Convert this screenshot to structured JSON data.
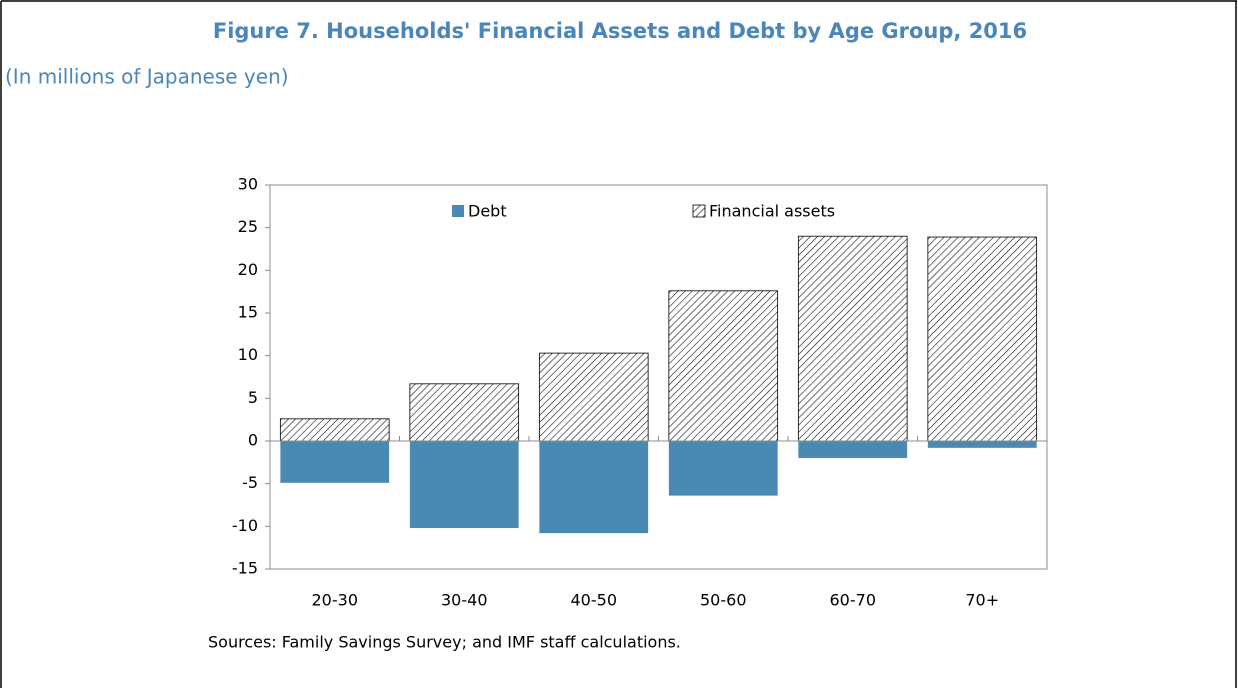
{
  "chart_data": {
    "type": "bar",
    "title": "Figure 7. Households' Financial Assets and Debt by Age Group, 2016",
    "subtitle": "(In millions of Japanese yen)",
    "note": "Sources: Family Savings Survey; and IMF staff calculations.",
    "categories": [
      "20-30",
      "30-40",
      "40-50",
      "50-60",
      "60-70",
      "70+"
    ],
    "series": [
      {
        "name": "Debt",
        "color": "#4a89b1",
        "hatch": false,
        "values": [
          -4.9,
          -10.2,
          -10.8,
          -6.4,
          -2.0,
          -0.8
        ]
      },
      {
        "name": "Financial assets",
        "color": "#000000",
        "hatch": true,
        "values": [
          2.6,
          6.7,
          10.3,
          17.6,
          24.0,
          23.9
        ]
      }
    ],
    "ylim": [
      -15,
      30
    ],
    "yticks": [
      -15,
      -10,
      -5,
      0,
      5,
      10,
      15,
      20,
      25,
      30
    ],
    "grid": false,
    "legend": "upper center"
  }
}
